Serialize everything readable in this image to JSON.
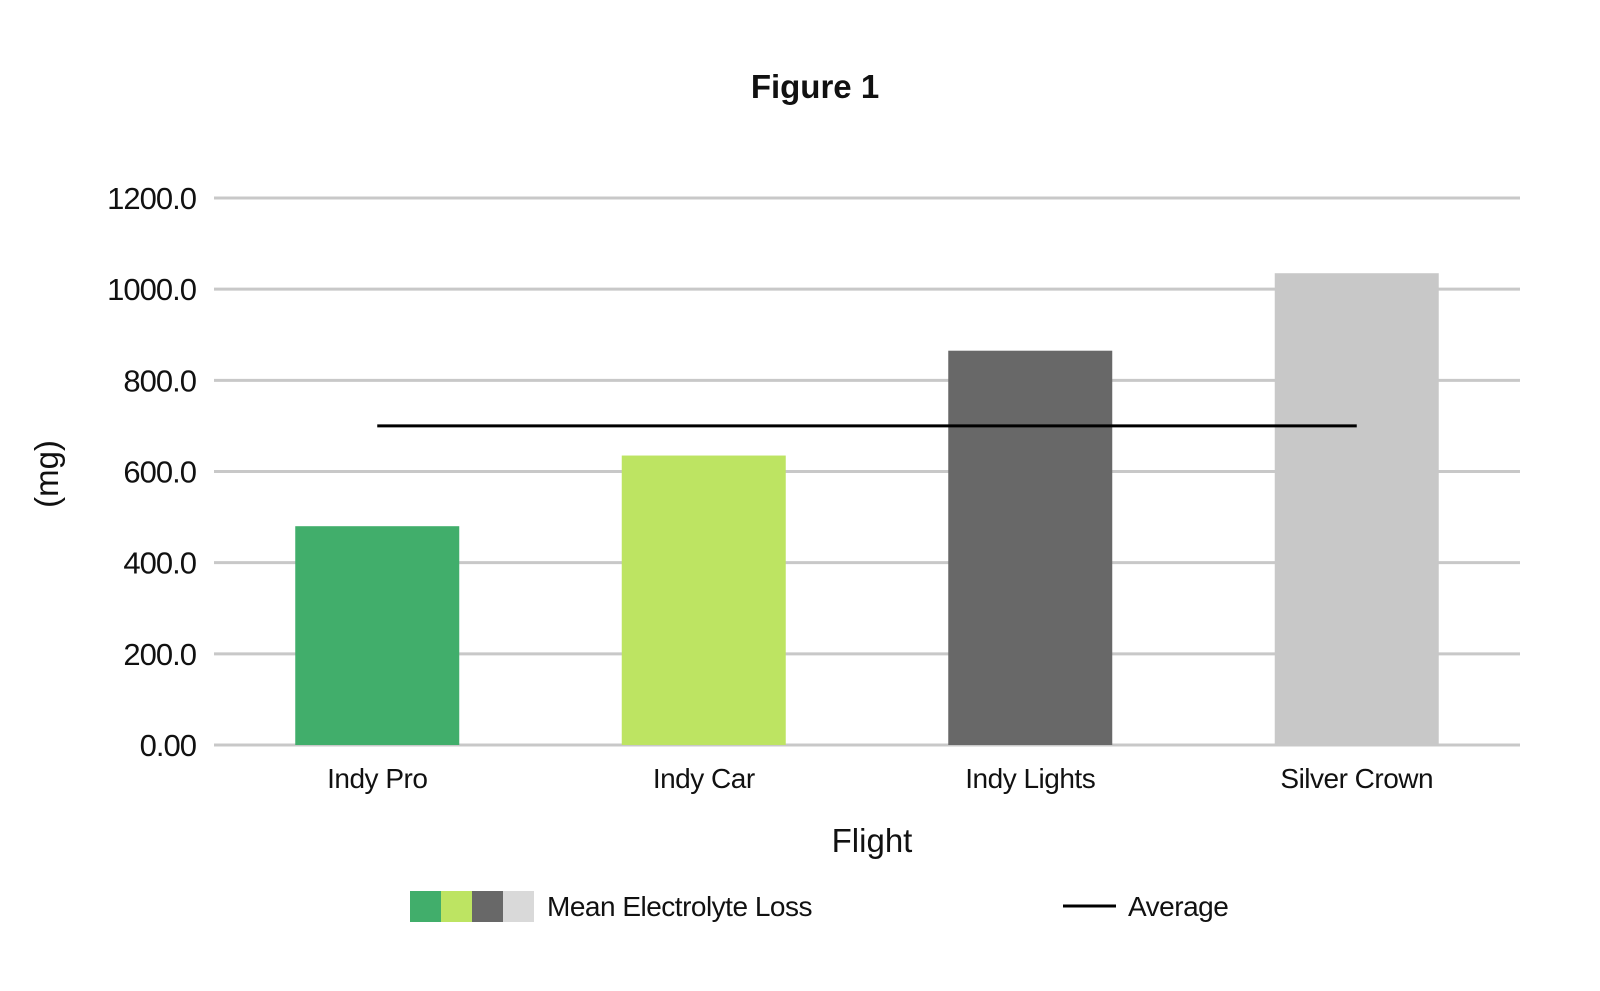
{
  "chart_data": {
    "type": "bar",
    "title": "Figure 1",
    "xlabel": "Flight",
    "ylabel": "(mg)",
    "ylim": [
      0,
      1200
    ],
    "yticks": [
      "0.00",
      "200.0",
      "400.0",
      "600.0",
      "800.0",
      "1000.0",
      "1200.0"
    ],
    "categories": [
      "Indy Pro",
      "Indy Car",
      "Indy Lights",
      "Silver Crown"
    ],
    "series": [
      {
        "name": "Mean Electrolyte Loss",
        "values": [
          480,
          635,
          865,
          1035
        ],
        "colors": [
          "#41ae6b",
          "#bde462",
          "#686868",
          "#c8c8c8"
        ]
      },
      {
        "name": "Average",
        "type": "line",
        "value": 700,
        "color": "#000000"
      }
    ],
    "legend_swatch_colors": [
      "#41ae6b",
      "#bde462",
      "#686868",
      "#d9d9d9"
    ],
    "grid": true,
    "gridColor": "#c8c8c8",
    "legend": "bottom"
  }
}
